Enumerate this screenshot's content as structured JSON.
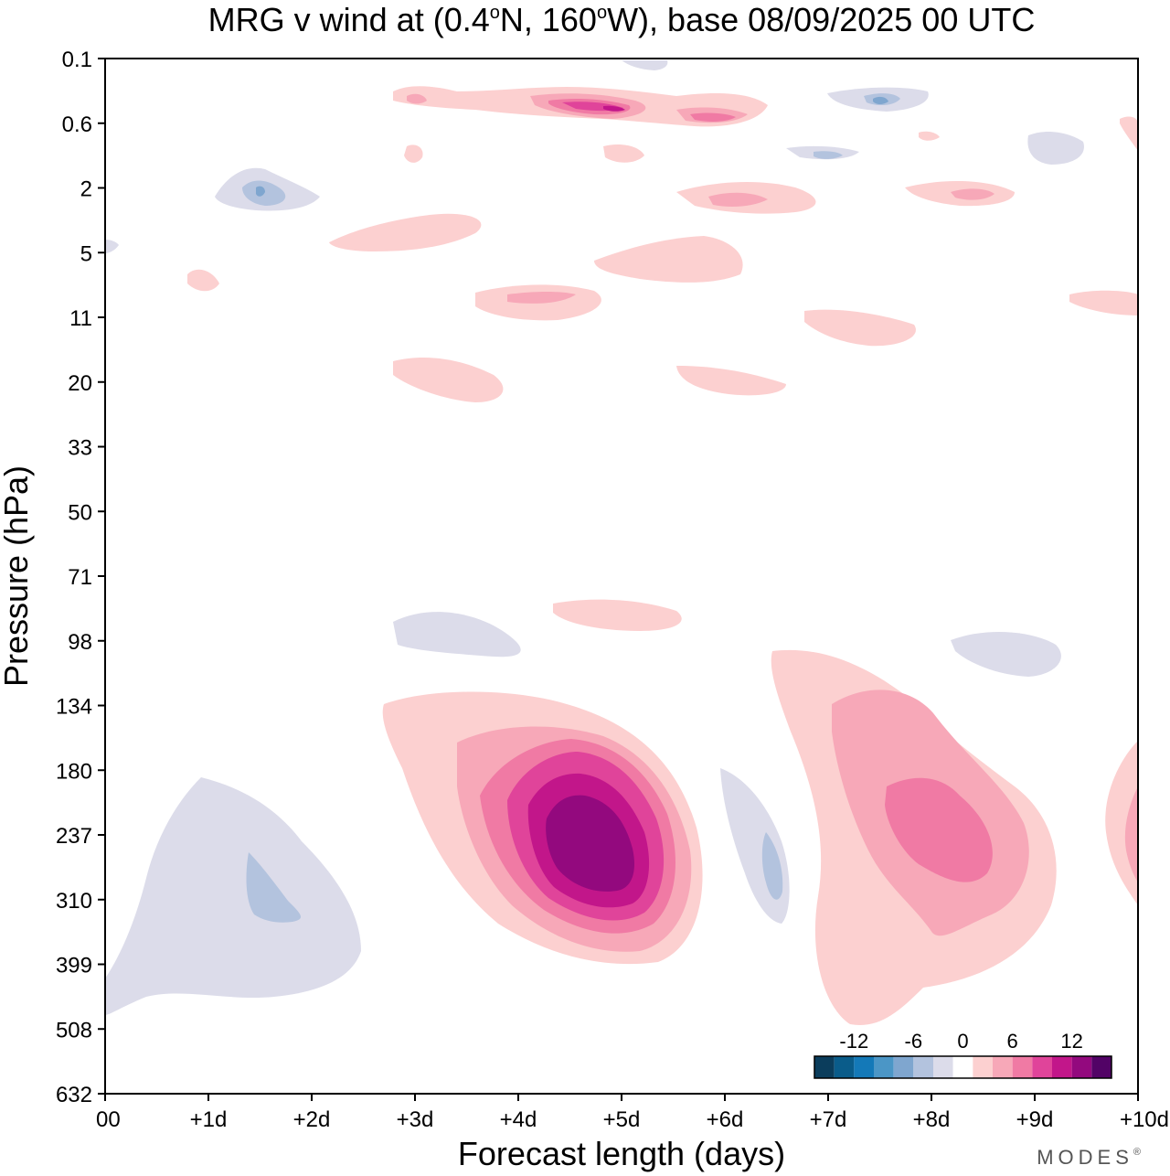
{
  "chart_data": {
    "type": "contour",
    "title_prefix": "MRG v wind at (0.4",
    "title_lat": "N, 160",
    "title_suffix": "W),  base 08/09/2025  00 UTC",
    "degree_symbol": "o",
    "xlabel": "Forecast length (days)",
    "ylabel": "Pressure (hPa)",
    "x_ticks": [
      "00",
      "+1d",
      "+2d",
      "+3d",
      "+4d",
      "+5d",
      "+6d",
      "+7d",
      "+8d",
      "+9d",
      "+10d"
    ],
    "xlim_days": [
      0,
      10
    ],
    "y_ticks": [
      "0.1",
      "0.6",
      "2",
      "5",
      "11",
      "20",
      "33",
      "50",
      "71",
      "98",
      "134",
      "180",
      "237",
      "310",
      "399",
      "508",
      "632"
    ],
    "ylim_hpa": [
      0.1,
      632
    ],
    "contour_levels": [
      -14,
      -12,
      -10,
      -8,
      -6,
      -4,
      -2,
      2,
      4,
      6,
      8,
      10,
      12,
      14
    ],
    "colorbar_labels": [
      "-12",
      "-6",
      "0",
      "6",
      "12"
    ],
    "colorbar_colors": [
      "#0b3d5c",
      "#0a5c8a",
      "#1479b8",
      "#4b96c6",
      "#7fa6cf",
      "#b3c3de",
      "#dcdcea",
      "#ffffff",
      "#fcd0d0",
      "#f7a8b8",
      "#f07aa4",
      "#e0449a",
      "#c2168a",
      "#93097e",
      "#520366"
    ],
    "features": [
      {
        "level": 14,
        "day": 4.6,
        "pressure": 260,
        "desc": "strongest positive maximum"
      },
      {
        "level": 8,
        "day": 7.4,
        "pressure": 220,
        "desc": "secondary positive maximum"
      },
      {
        "level": -6,
        "day": 1.5,
        "pressure": 280,
        "desc": "lower-level negative minimum"
      },
      {
        "level": -8,
        "day": 7.5,
        "pressure": 0.4,
        "desc": "upper-level negative minimum"
      },
      {
        "level": 12,
        "day": 5.0,
        "pressure": 0.4,
        "desc": "upper-level positive maximum"
      }
    ],
    "credit": "MODES",
    "credit_mark": "®"
  }
}
